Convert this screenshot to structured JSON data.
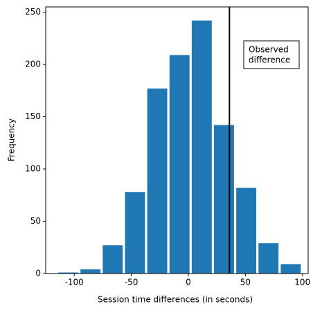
{
  "chart_data": {
    "type": "histogram",
    "xlabel": "Session time differences (in seconds)",
    "ylabel": "Frequency",
    "bins": [
      -115,
      -95.5,
      -76,
      -56.5,
      -37,
      -17.5,
      2,
      21.5,
      41,
      60.5,
      80,
      99.5
    ],
    "counts": [
      1,
      4,
      27,
      78,
      177,
      209,
      242,
      142,
      82,
      29,
      9
    ],
    "rwidth": 0.9,
    "color": "#1f77b4",
    "xlim": [
      -125,
      105
    ],
    "xticks": [
      -100,
      -50,
      0,
      50,
      100
    ],
    "ylim": [
      0,
      255
    ],
    "yticks": [
      0,
      50,
      100,
      150,
      200,
      250
    ],
    "vline": 36,
    "vline_color": "#000000",
    "annotation": [
      "Observed",
      "difference"
    ]
  }
}
